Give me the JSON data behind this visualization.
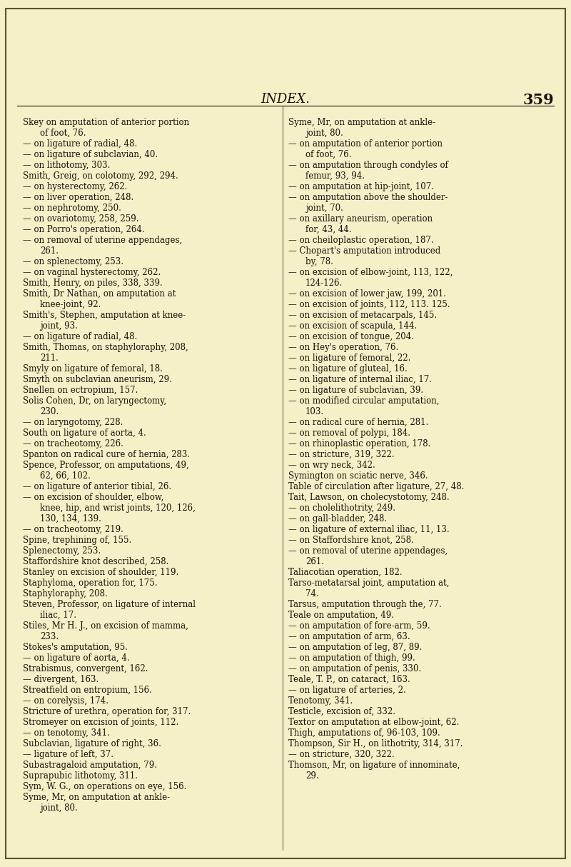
{
  "background_color": "#f5f0c8",
  "text_color": "#1a1008",
  "title": "INDEX.",
  "page_num": "359",
  "title_fontsize": 13,
  "body_fontsize": 8.5,
  "left_col": [
    "Skey on amputation of anterior portion",
    "  of foot, 76.",
    "— on ligature of radial, 48.",
    "— on ligature of subclavian, 40.",
    "— on lithotomy, 303.",
    "Smith, Greig, on colotomy, 292, 294.",
    "— on hysterectomy, 262.",
    "— on liver operation, 248.",
    "— on nephrotomy, 250.",
    "— on ovariotomy, 258, 259.",
    "— on Porro's operation, 264.",
    "— on removal of uterine appendages,",
    "  261.",
    "— on splenectomy, 253.",
    "— on vaginal hysterectomy, 262.",
    "Smith, Henry, on piles, 338, 339.",
    "Smith, Dr Nathan, on amputation at",
    "  knee-joint, 92.",
    "Smith's, Stephen, amputation at knee-",
    "  joint, 93.",
    "— on ligature of radial, 48.",
    "Smith, Thomas, on staphyloraphy, 208,",
    "  211.",
    "Smyly on ligature of femoral, 18.",
    "Smyth on subclavian aneurism, 29.",
    "Snellen on ectropium, 157.",
    "Solis Cohen, Dr, on laryngectomy,",
    "  230.",
    "— on laryngotomy, 228.",
    "South on ligature of aorta, 4.",
    "— on tracheotomy, 226.",
    "Spanton on radical cure of hernia, 283.",
    "Spence, Professor, on amputations, 49,",
    "  62, 66, 102.",
    "— on ligature of anterior tibial, 26.",
    "— on excision of shoulder, elbow,",
    "  knee, hip, and wrist joints, 120, 126,",
    "  130, 134, 139.",
    "— on tracheotomy, 219.",
    "Spine, trephining of, 155.",
    "Splenectomy, 253.",
    "Staffordshire knot described, 258.",
    "Stanley on excision of shoulder, 119.",
    "Staphyloma, operation for, 175.",
    "Staphyloraphy, 208.",
    "Steven, Professor, on ligature of internal",
    "  iliac, 17.",
    "Stiles, Mr H. J., on excision of mamma,",
    "  233.",
    "Stokes's amputation, 95.",
    "— on ligature of aorta, 4.",
    "Strabismus, convergent, 162.",
    "— divergent, 163.",
    "Streatfield on entropium, 156.",
    "— on corelysis, 174.",
    "Stricture of urethra, operation for, 317.",
    "Stromeyer on excision of joints, 112.",
    "— on tenotomy, 341.",
    "Subclavian, ligature of right, 36.",
    "— ligature of left, 37.",
    "Subastragaloid amputation, 79.",
    "Suprapubic lithotomy, 311.",
    "Sym, W. G., on operations on eye, 156.",
    "Syme, Mr, on amputation at ankle-",
    "  joint, 80."
  ],
  "right_col": [
    "Syme, Mr, on amputation at ankle-",
    "  joint, 80.",
    "— on amputation of anterior portion",
    "  of foot, 76.",
    "— on amputation through condyles of",
    "  femur, 93, 94.",
    "— on amputation at hip-joint, 107.",
    "— on amputation above the shoulder-",
    "  joint, 70.",
    "— on axillary aneurism, operation",
    "  for, 43, 44.",
    "— on cheiloplastic operation, 187.",
    "— Chopart's amputation introduced",
    "  by, 78.",
    "— on excision of elbow-joint, 113, 122,",
    "  124-126.",
    "— on excision of lower jaw, 199, 201.",
    "— on excision of joints, 112, 113. 125.",
    "— on excision of metacarpals, 145.",
    "— on excision of scapula, 144.",
    "— on excision of tongue, 204.",
    "— on Hey's operation, 76.",
    "— on ligature of femoral, 22.",
    "— on ligature of gluteal, 16.",
    "— on ligature of internal iliac, 17.",
    "— on ligature of subclavian, 39.",
    "— on modified circular amputation,",
    "  103.",
    "— on radical cure of hernia, 281.",
    "— on removal of polypi, 184.",
    "— on rhinoplastic operation, 178.",
    "— on stricture, 319, 322.",
    "— on wry neck, 342.",
    "Symington on sciatic nerve, 346.",
    "Table of circulation after ligature, 27, 48.",
    "Tait, Lawson, on cholecystotomy, 248.",
    "— on cholelithotrity, 249.",
    "— on gall-bladder, 248.",
    "— on ligature of external iliac, 11, 13.",
    "— on Staffordshire knot, 258.",
    "— on removal of uterine appendages,",
    "  261.",
    "Taliacotian operation, 182.",
    "Tarso-metatarsal joint, amputation at,",
    "  74.",
    "Tarsus, amputation through the, 77.",
    "Teale on amputation, 49.",
    "— on amputation of fore-arm, 59.",
    "— on amputation of arm, 63.",
    "— on amputation of leg, 87, 89.",
    "— on amputation of thigh, 99.",
    "— on amputation of penis, 330.",
    "Teale, T. P., on cataract, 163.",
    "— on ligature of arteries, 2.",
    "Tenotomy, 341.",
    "Testicle, excision of, 332.",
    "Textor on amputation at elbow-joint, 62.",
    "Thigh, amputations of, 96-103, 109.",
    "Thompson, Sir H., on lithotrity, 314, 317.",
    "— on stricture, 320, 322.",
    "Thomson, Mr, on ligature of innominate,",
    "  29."
  ]
}
